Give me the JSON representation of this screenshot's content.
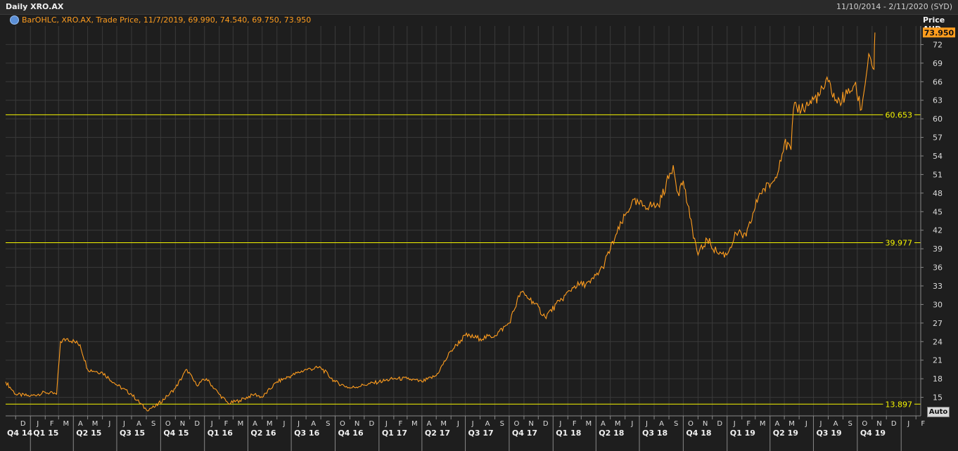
{
  "header": {
    "title": "Daily XRO.AX",
    "date_range": "11/10/2014 - 2/11/2020 (SYD)"
  },
  "legend": {
    "text": "BarOHLC, XRO.AX, Trade Price,  11/7/2019, 69.990, 74.540, 69.750, 73.950"
  },
  "axis": {
    "price_label": "Price",
    "currency": "AUD",
    "auto_button": "Auto"
  },
  "colors": {
    "background": "#1e1e1e",
    "series": "#ff9d1e",
    "hline": "#f5f500",
    "grid": "#3a3a3a"
  },
  "chart_data": {
    "type": "line",
    "title": "Daily XRO.AX",
    "xlabel": "",
    "ylabel": "Price AUD",
    "ylim": [
      12,
      75
    ],
    "grid": true,
    "y_ticks": [
      15,
      18,
      21,
      24,
      27,
      30,
      33,
      36,
      39,
      42,
      45,
      48,
      51,
      54,
      57,
      60,
      63,
      66,
      69,
      72
    ],
    "last_price": "73.950",
    "horizontal_lines": [
      60.653,
      39.977,
      13.897
    ],
    "horizontal_line_labels": [
      "60.653",
      "39.977",
      "13.897"
    ],
    "month_labels": [
      "D",
      "J",
      "F",
      "M",
      "A",
      "M",
      "J",
      "J",
      "A",
      "S",
      "O",
      "N",
      "D",
      "J",
      "F",
      "M",
      "A",
      "M",
      "J",
      "J",
      "A",
      "S",
      "O",
      "N",
      "D",
      "J",
      "F",
      "M",
      "A",
      "M",
      "J",
      "J",
      "A",
      "S",
      "O",
      "N",
      "D",
      "J",
      "F",
      "M",
      "A",
      "M",
      "J",
      "J",
      "A",
      "S",
      "O",
      "N",
      "D",
      "J",
      "F",
      "M",
      "A",
      "M",
      "J",
      "J",
      "A",
      "S",
      "O",
      "N",
      "D",
      "J",
      "F"
    ],
    "quarter_labels": [
      "Q4 14",
      "Q1 15",
      "Q2 15",
      "Q3 15",
      "Q4 15",
      "Q1 16",
      "Q2 16",
      "Q3 16",
      "Q4 16",
      "Q1 17",
      "Q2 17",
      "Q3 17",
      "Q4 17",
      "Q1 18",
      "Q2 18",
      "Q3 18",
      "Q4 18",
      "Q1 19",
      "Q2 19",
      "Q3 19",
      "Q4 19"
    ],
    "series": [
      {
        "x": [
          "2014-11-10",
          "2014-12-01",
          "2015-01-01",
          "2015-02-01",
          "2015-02-25",
          "2015-03-05",
          "2015-03-20",
          "2015-04-15",
          "2015-05-01",
          "2015-06-01",
          "2015-07-01",
          "2015-08-01",
          "2015-09-01",
          "2015-09-20",
          "2015-10-15",
          "2015-11-01",
          "2015-11-25",
          "2015-12-15",
          "2016-01-05",
          "2016-02-01",
          "2016-02-20",
          "2016-03-15",
          "2016-04-15",
          "2016-05-01",
          "2016-06-01",
          "2016-07-01",
          "2016-08-01",
          "2016-09-01",
          "2016-10-01",
          "2016-11-01",
          "2016-12-01",
          "2017-01-01",
          "2017-02-01",
          "2017-03-01",
          "2017-04-01",
          "2017-05-01",
          "2017-06-01",
          "2017-07-01",
          "2017-08-01",
          "2017-09-01",
          "2017-10-01",
          "2017-10-25",
          "2017-11-20",
          "2017-12-15",
          "2018-01-15",
          "2018-02-15",
          "2018-03-20",
          "2018-04-15",
          "2018-05-15",
          "2018-06-15",
          "2018-07-10",
          "2018-08-10",
          "2018-09-10",
          "2018-09-20",
          "2018-10-01",
          "2018-10-15",
          "2018-11-01",
          "2018-11-20",
          "2018-12-10",
          "2018-12-31",
          "2019-01-20",
          "2019-02-10",
          "2019-03-10",
          "2019-04-10",
          "2019-05-01",
          "2019-05-15",
          "2019-05-20",
          "2019-06-15",
          "2019-07-15",
          "2019-08-01",
          "2019-08-20",
          "2019-09-10",
          "2019-09-25",
          "2019-10-10",
          "2019-10-25",
          "2019-11-05",
          "2019-11-07"
        ],
        "values": [
          17.5,
          15.5,
          15.2,
          15.8,
          15.5,
          24.0,
          24.5,
          23.5,
          19.5,
          19.0,
          17.0,
          15.5,
          13.0,
          13.5,
          15.2,
          16.5,
          19.5,
          17.0,
          18.0,
          15.5,
          14.0,
          14.5,
          15.5,
          15.0,
          17.5,
          18.5,
          19.5,
          19.8,
          17.5,
          16.5,
          17.0,
          17.5,
          18.0,
          18.0,
          17.5,
          18.5,
          22.5,
          25.0,
          24.5,
          25.0,
          27.0,
          32.0,
          30.5,
          28.0,
          30.5,
          33.0,
          33.5,
          36.0,
          41.5,
          46.5,
          46.0,
          46.0,
          52.5,
          48.0,
          50.0,
          44.0,
          38.0,
          40.5,
          38.5,
          38.0,
          41.5,
          41.0,
          48.0,
          50.0,
          56.0,
          55.0,
          61.5,
          62.0,
          64.0,
          66.0,
          62.5,
          64.0,
          65.5,
          61.5,
          70.5,
          68.0,
          73.95
        ]
      }
    ]
  }
}
